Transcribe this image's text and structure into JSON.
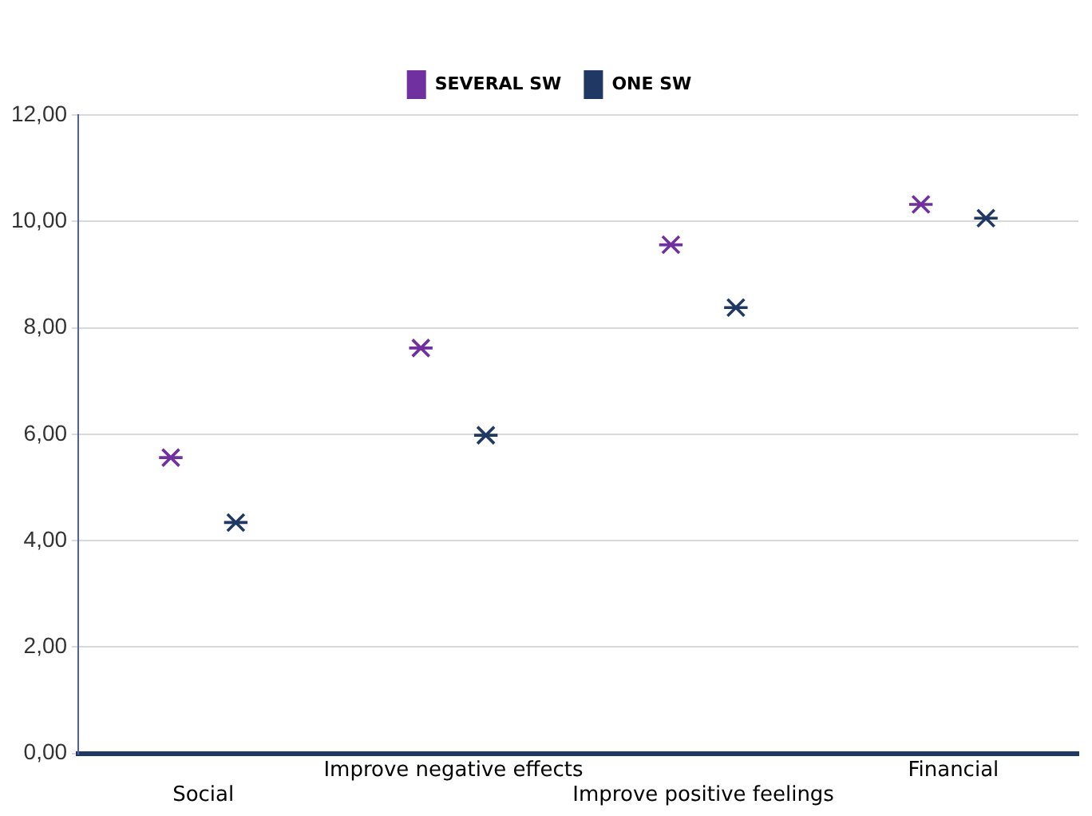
{
  "chart_data": {
    "type": "scatter",
    "categories": [
      "Social",
      "Improve negative effects",
      "Improve positive feelings",
      "Financial"
    ],
    "series": [
      {
        "name": "SEVERAL SW",
        "color": "#7030a0",
        "values": [
          5.56,
          7.62,
          9.56,
          10.32
        ]
      },
      {
        "name": "ONE SW",
        "color": "#203864",
        "values": [
          4.34,
          5.98,
          8.38,
          10.06
        ]
      }
    ],
    "ylim": [
      0,
      12
    ],
    "yticks": [
      {
        "value": 0,
        "label": "0,00"
      },
      {
        "value": 2,
        "label": "2,00"
      },
      {
        "value": 4,
        "label": "4,00"
      },
      {
        "value": 6,
        "label": "6,00"
      },
      {
        "value": 8,
        "label": "8,00"
      },
      {
        "value": 10,
        "label": "10,00"
      },
      {
        "value": 12,
        "label": "12,00"
      }
    ],
    "grid": "y",
    "legend": "top",
    "marker": "cross"
  }
}
